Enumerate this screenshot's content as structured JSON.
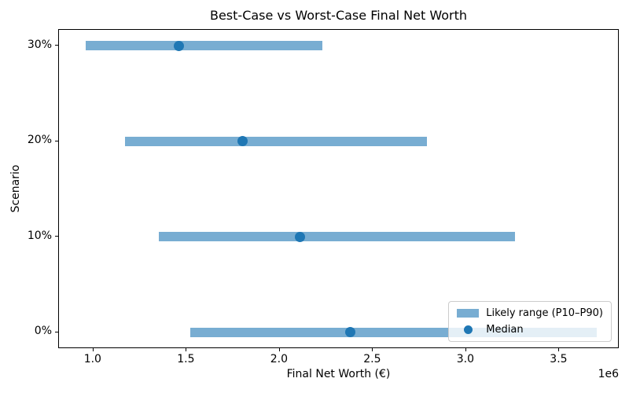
{
  "chart_data": {
    "type": "bar",
    "orientation": "horizontal",
    "title": "Best-Case vs Worst-Case Final Net Worth",
    "xlabel": "Final Net Worth (€)",
    "ylabel": "Scenario",
    "x_offset_label": "1e6",
    "categories": [
      "0%",
      "10%",
      "20%",
      "30%"
    ],
    "series": [
      {
        "name": "Likely range (P10–P90)",
        "type": "range",
        "p10": [
          1520000,
          1350000,
          1170000,
          960000
        ],
        "p90": [
          3700000,
          3260000,
          2790000,
          2230000
        ]
      },
      {
        "name": "Median",
        "type": "point",
        "values": [
          2380000,
          2110000,
          1800000,
          1460000
        ]
      }
    ],
    "xlim": [
      815000,
      3823000
    ],
    "xticks": [
      1000000,
      1500000,
      2000000,
      2500000,
      3000000,
      3500000
    ],
    "xtick_labels": [
      "1.0",
      "1.5",
      "2.0",
      "2.5",
      "3.0",
      "3.5"
    ],
    "grid": false,
    "legend_position": "lower right",
    "colors": {
      "bar": "#78add2",
      "median": "#1f77b4"
    }
  },
  "legend": {
    "items": [
      {
        "label": "Likely range (P10–P90)",
        "swatch": "bar"
      },
      {
        "label": "Median",
        "swatch": "dot"
      }
    ]
  }
}
